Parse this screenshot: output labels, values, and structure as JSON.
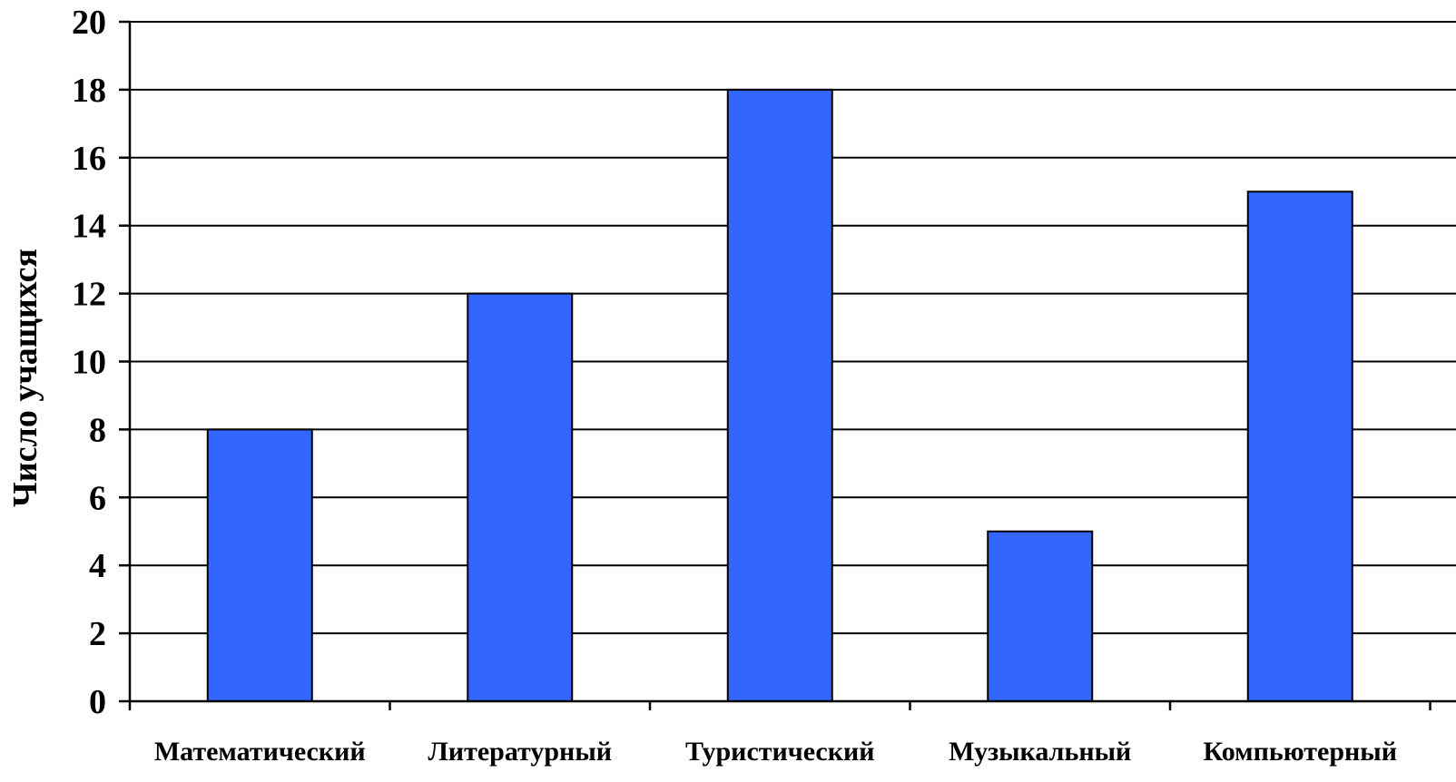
{
  "chart_data": {
    "type": "bar",
    "title": "",
    "xlabel": "",
    "ylabel": "Число учащихся",
    "ylim": [
      0,
      20
    ],
    "ytick_step": 2,
    "grid": true,
    "legend": "none",
    "categories": [
      "Математический",
      "Литературный",
      "Туристический",
      "Музыкальный",
      "Компьютерный"
    ],
    "values": [
      8,
      12,
      18,
      5,
      15
    ],
    "colors": {
      "bar": "#3366ff",
      "bar_edge": "#000000",
      "grid": "#000000",
      "background": "#ffffff"
    }
  }
}
